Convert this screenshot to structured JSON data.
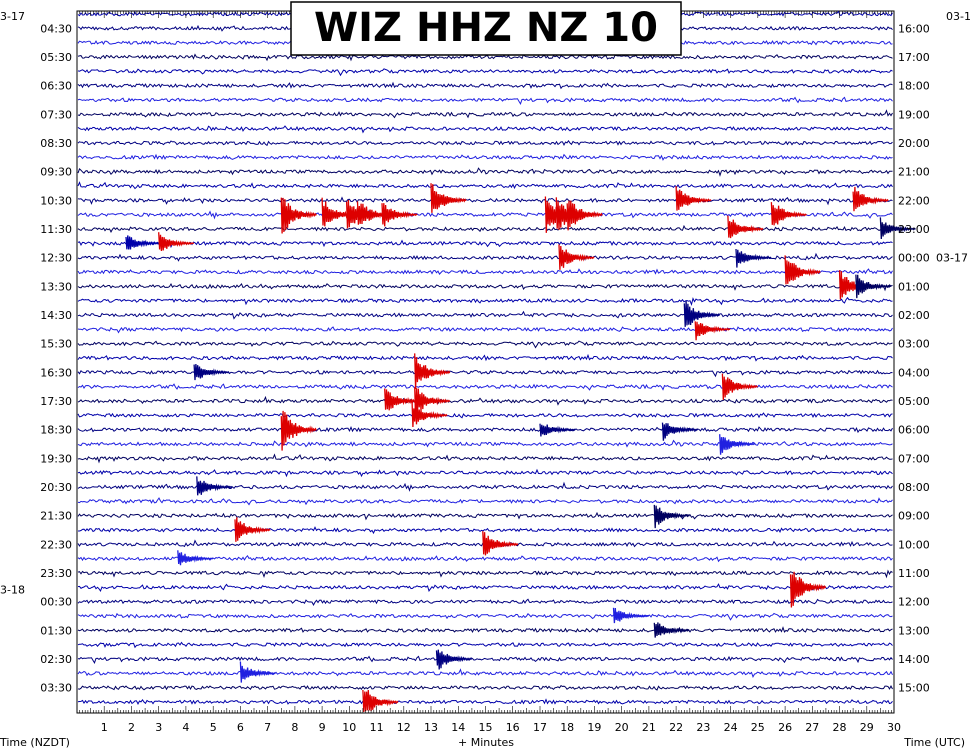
{
  "chart_data": {
    "type": "line",
    "title": "WIZ HHZ NZ 10",
    "xlabel": "+ Minutes",
    "left_axis_label": "Time (NZDT)",
    "right_axis_label": "Time (UTC)",
    "xlim": [
      0,
      30
    ],
    "x_ticks": [
      "1",
      "2",
      "3",
      "4",
      "5",
      "6",
      "7",
      "8",
      "9",
      "10",
      "11",
      "12",
      "13",
      "14",
      "15",
      "16",
      "17",
      "18",
      "19",
      "20",
      "21",
      "22",
      "23",
      "24",
      "25",
      "26",
      "27",
      "28",
      "29",
      "30"
    ],
    "left_date_labels": [
      {
        "text": "3-17",
        "row": 0
      },
      {
        "text": "3-18",
        "row": 40
      }
    ],
    "right_date_labels": [
      {
        "text": "03-1",
        "row": 0
      },
      {
        "text": "03-17",
        "row": 17
      }
    ],
    "left_time_labels": [
      {
        "text": "04:30",
        "row": 1
      },
      {
        "text": "05:30",
        "row": 3
      },
      {
        "text": "06:30",
        "row": 5
      },
      {
        "text": "07:30",
        "row": 7
      },
      {
        "text": "08:30",
        "row": 9
      },
      {
        "text": "09:30",
        "row": 11
      },
      {
        "text": "10:30",
        "row": 13
      },
      {
        "text": "11:30",
        "row": 15
      },
      {
        "text": "12:30",
        "row": 17
      },
      {
        "text": "13:30",
        "row": 19
      },
      {
        "text": "14:30",
        "row": 21
      },
      {
        "text": "15:30",
        "row": 23
      },
      {
        "text": "16:30",
        "row": 25
      },
      {
        "text": "17:30",
        "row": 27
      },
      {
        "text": "18:30",
        "row": 29
      },
      {
        "text": "19:30",
        "row": 31
      },
      {
        "text": "20:30",
        "row": 33
      },
      {
        "text": "21:30",
        "row": 35
      },
      {
        "text": "22:30",
        "row": 37
      },
      {
        "text": "23:30",
        "row": 39
      },
      {
        "text": "00:30",
        "row": 41
      },
      {
        "text": "01:30",
        "row": 43
      },
      {
        "text": "02:30",
        "row": 45
      },
      {
        "text": "03:30",
        "row": 47
      }
    ],
    "right_time_labels": [
      {
        "text": "16:00",
        "row": 1
      },
      {
        "text": "17:00",
        "row": 3
      },
      {
        "text": "18:00",
        "row": 5
      },
      {
        "text": "19:00",
        "row": 7
      },
      {
        "text": "20:00",
        "row": 9
      },
      {
        "text": "21:00",
        "row": 11
      },
      {
        "text": "22:00",
        "row": 13
      },
      {
        "text": "23:00",
        "row": 15
      },
      {
        "text": "00:00",
        "row": 17
      },
      {
        "text": "01:00",
        "row": 19
      },
      {
        "text": "02:00",
        "row": 21
      },
      {
        "text": "03:00",
        "row": 23
      },
      {
        "text": "04:00",
        "row": 25
      },
      {
        "text": "05:00",
        "row": 27
      },
      {
        "text": "06:00",
        "row": 29
      },
      {
        "text": "07:00",
        "row": 31
      },
      {
        "text": "08:00",
        "row": 33
      },
      {
        "text": "09:00",
        "row": 35
      },
      {
        "text": "10:00",
        "row": 37
      },
      {
        "text": "11:00",
        "row": 39
      },
      {
        "text": "12:00",
        "row": 41
      },
      {
        "text": "13:00",
        "row": 43
      },
      {
        "text": "14:00",
        "row": 45
      },
      {
        "text": "15:00",
        "row": 47
      }
    ],
    "trace_count": 49,
    "trace_colors": [
      "#0000aa",
      "#000080",
      "#2020e0",
      "#000060"
    ],
    "event_color": "#dd0000",
    "events": [
      {
        "row": 14,
        "minute": 7.5,
        "amp": 1.2,
        "red": true
      },
      {
        "row": 14,
        "minute": 9.0,
        "amp": 1.0,
        "red": true
      },
      {
        "row": 14,
        "minute": 9.9,
        "amp": 1.1,
        "red": true
      },
      {
        "row": 14,
        "minute": 10.3,
        "amp": 1.0,
        "red": true
      },
      {
        "row": 14,
        "minute": 11.2,
        "amp": 0.8,
        "red": true
      },
      {
        "row": 13,
        "minute": 13.0,
        "amp": 1.0,
        "red": true
      },
      {
        "row": 14,
        "minute": 17.2,
        "amp": 1.1,
        "red": true
      },
      {
        "row": 14,
        "minute": 17.6,
        "amp": 1.2,
        "red": true
      },
      {
        "row": 14,
        "minute": 18.0,
        "amp": 1.1,
        "red": true
      },
      {
        "row": 13,
        "minute": 22.0,
        "amp": 0.8,
        "red": true
      },
      {
        "row": 14,
        "minute": 25.5,
        "amp": 0.9,
        "red": true
      },
      {
        "row": 13,
        "minute": 28.5,
        "amp": 0.8,
        "red": true
      },
      {
        "row": 15,
        "minute": 23.9,
        "amp": 0.8,
        "red": true
      },
      {
        "row": 15,
        "minute": 29.5,
        "amp": 0.6,
        "red": false
      },
      {
        "row": 16,
        "minute": 1.8,
        "amp": 0.5,
        "red": false
      },
      {
        "row": 16,
        "minute": 3.0,
        "amp": 0.6,
        "red": true
      },
      {
        "row": 17,
        "minute": 17.7,
        "amp": 0.8,
        "red": true
      },
      {
        "row": 17,
        "minute": 24.2,
        "amp": 0.6,
        "red": false
      },
      {
        "row": 18,
        "minute": 26.0,
        "amp": 1.0,
        "red": true
      },
      {
        "row": 19,
        "minute": 28.0,
        "amp": 0.9,
        "red": true
      },
      {
        "row": 19,
        "minute": 28.6,
        "amp": 0.7,
        "red": false
      },
      {
        "row": 21,
        "minute": 22.3,
        "amp": 0.9,
        "red": false
      },
      {
        "row": 22,
        "minute": 22.7,
        "amp": 0.6,
        "red": true
      },
      {
        "row": 25,
        "minute": 12.4,
        "amp": 1.0,
        "red": true
      },
      {
        "row": 25,
        "minute": 4.3,
        "amp": 0.6,
        "red": false
      },
      {
        "row": 26,
        "minute": 23.7,
        "amp": 0.8,
        "red": true
      },
      {
        "row": 27,
        "minute": 11.3,
        "amp": 0.8,
        "red": true
      },
      {
        "row": 27,
        "minute": 12.4,
        "amp": 0.9,
        "red": true
      },
      {
        "row": 28,
        "minute": 12.3,
        "amp": 0.8,
        "red": true
      },
      {
        "row": 29,
        "minute": 7.5,
        "amp": 1.3,
        "red": true
      },
      {
        "row": 29,
        "minute": 17.0,
        "amp": 0.5,
        "red": false
      },
      {
        "row": 29,
        "minute": 21.5,
        "amp": 0.6,
        "red": false
      },
      {
        "row": 30,
        "minute": 23.6,
        "amp": 0.6,
        "red": false
      },
      {
        "row": 33,
        "minute": 4.4,
        "amp": 0.6,
        "red": false
      },
      {
        "row": 35,
        "minute": 21.2,
        "amp": 0.7,
        "red": false
      },
      {
        "row": 36,
        "minute": 5.8,
        "amp": 0.8,
        "red": true
      },
      {
        "row": 37,
        "minute": 14.9,
        "amp": 0.8,
        "red": true
      },
      {
        "row": 38,
        "minute": 3.7,
        "amp": 0.5,
        "red": false
      },
      {
        "row": 40,
        "minute": 26.2,
        "amp": 1.2,
        "red": true
      },
      {
        "row": 42,
        "minute": 19.7,
        "amp": 0.5,
        "red": false
      },
      {
        "row": 43,
        "minute": 21.2,
        "amp": 0.6,
        "red": false
      },
      {
        "row": 45,
        "minute": 13.2,
        "amp": 0.7,
        "red": false
      },
      {
        "row": 46,
        "minute": 6.0,
        "amp": 0.6,
        "red": false
      },
      {
        "row": 48,
        "minute": 10.5,
        "amp": 1.0,
        "red": true
      }
    ]
  }
}
